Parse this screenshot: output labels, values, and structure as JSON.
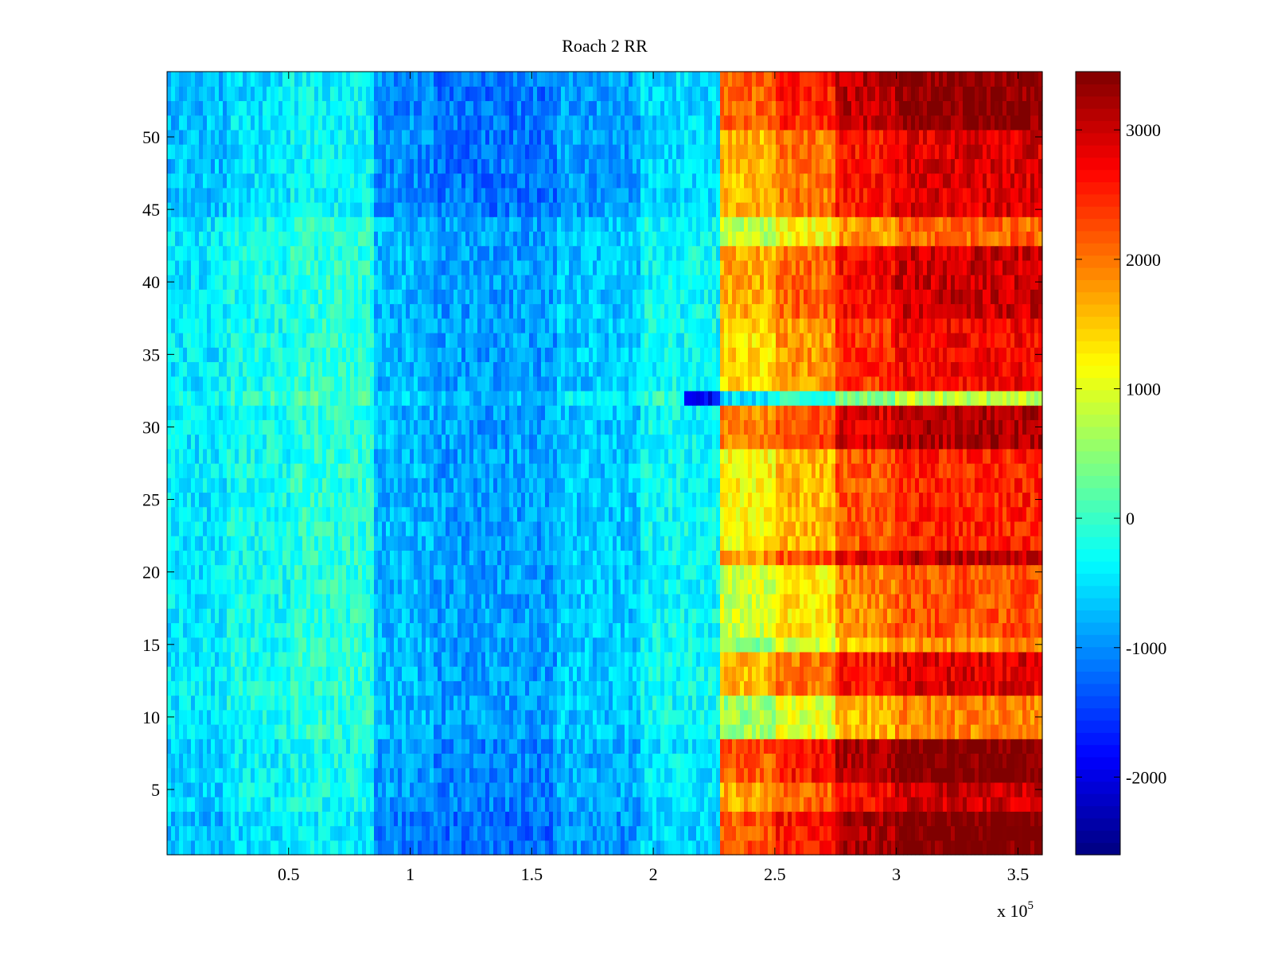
{
  "chart_data": {
    "type": "heatmap",
    "title": "Roach 2 RR",
    "xlabel": "",
    "ylabel": "",
    "x_exponent_label": "x 10",
    "x_exponent_sup": "5",
    "x_range": [
      0,
      360000
    ],
    "y_range": [
      0.5,
      54.5
    ],
    "x_ticks": [
      {
        "value": 50000,
        "label": "0.5"
      },
      {
        "value": 100000,
        "label": "1"
      },
      {
        "value": 150000,
        "label": "1.5"
      },
      {
        "value": 200000,
        "label": "2"
      },
      {
        "value": 250000,
        "label": "2.5"
      },
      {
        "value": 300000,
        "label": "3"
      },
      {
        "value": 350000,
        "label": "3.5"
      }
    ],
    "y_ticks": [
      {
        "value": 5,
        "label": "5"
      },
      {
        "value": 10,
        "label": "10"
      },
      {
        "value": 15,
        "label": "15"
      },
      {
        "value": 20,
        "label": "20"
      },
      {
        "value": 25,
        "label": "25"
      },
      {
        "value": 30,
        "label": "30"
      },
      {
        "value": 35,
        "label": "35"
      },
      {
        "value": 40,
        "label": "40"
      },
      {
        "value": 45,
        "label": "45"
      },
      {
        "value": 50,
        "label": "50"
      }
    ],
    "colorbar": {
      "range": [
        -2600,
        3450
      ],
      "colormap": "jet",
      "ticks": [
        {
          "value": 3000,
          "label": "3000"
        },
        {
          "value": 2000,
          "label": "2000"
        },
        {
          "value": 1000,
          "label": "1000"
        },
        {
          "value": 0,
          "label": "0"
        },
        {
          "value": -1000,
          "label": "-1000"
        },
        {
          "value": -2000,
          "label": "-2000"
        }
      ]
    },
    "rows": 54,
    "x_segments": [
      {
        "x_start": 0,
        "x_end": 25000,
        "value": -450
      },
      {
        "x_start": 25000,
        "x_end": 50000,
        "value": -250
      },
      {
        "x_start": 50000,
        "x_end": 85000,
        "value": -100
      },
      {
        "x_start": 85000,
        "x_end": 110000,
        "value": -750
      },
      {
        "x_start": 110000,
        "x_end": 160000,
        "value": -900
      },
      {
        "x_start": 160000,
        "x_end": 195000,
        "value": -650
      },
      {
        "x_start": 195000,
        "x_end": 228000,
        "value": -300
      },
      {
        "x_start": 228000,
        "x_end": 250000,
        "value": 1400
      },
      {
        "x_start": 250000,
        "x_end": 275000,
        "value": 1800
      },
      {
        "x_start": 275000,
        "x_end": 300000,
        "value": 2400
      },
      {
        "x_start": 300000,
        "x_end": 360000,
        "value": 2700
      }
    ],
    "row_offsets_high": [
      {
        "row_from": 1,
        "row_to": 3,
        "offset": 800
      },
      {
        "row_from": 4,
        "row_to": 5,
        "offset": 300
      },
      {
        "row_from": 6,
        "row_to": 8,
        "offset": 800
      },
      {
        "row_from": 9,
        "row_to": 11,
        "offset": -800
      },
      {
        "row_from": 12,
        "row_to": 14,
        "offset": 200
      },
      {
        "row_from": 15,
        "row_to": 15,
        "offset": -900
      },
      {
        "row_from": 16,
        "row_to": 20,
        "offset": -500
      },
      {
        "row_from": 21,
        "row_to": 21,
        "offset": 400
      },
      {
        "row_from": 22,
        "row_to": 28,
        "offset": -200
      },
      {
        "row_from": 29,
        "row_to": 31,
        "offset": 500
      },
      {
        "row_from": 32,
        "row_to": 32,
        "offset": -1900
      },
      {
        "row_from": 33,
        "row_to": 37,
        "offset": 0
      },
      {
        "row_from": 38,
        "row_to": 42,
        "offset": 300
      },
      {
        "row_from": 43,
        "row_to": 44,
        "offset": -600
      },
      {
        "row_from": 45,
        "row_to": 50,
        "offset": 200
      },
      {
        "row_from": 51,
        "row_to": 54,
        "offset": 700
      }
    ],
    "row_offsets_low": [
      {
        "row_from": 1,
        "row_to": 3,
        "offset": -300
      },
      {
        "row_from": 4,
        "row_to": 8,
        "offset": -150
      },
      {
        "row_from": 32,
        "row_to": 32,
        "offset": 200
      },
      {
        "row_from": 45,
        "row_to": 54,
        "offset": -250
      }
    ],
    "row32_low_dip": {
      "x_start": 213000,
      "x_end": 228000,
      "value": -1900
    }
  }
}
